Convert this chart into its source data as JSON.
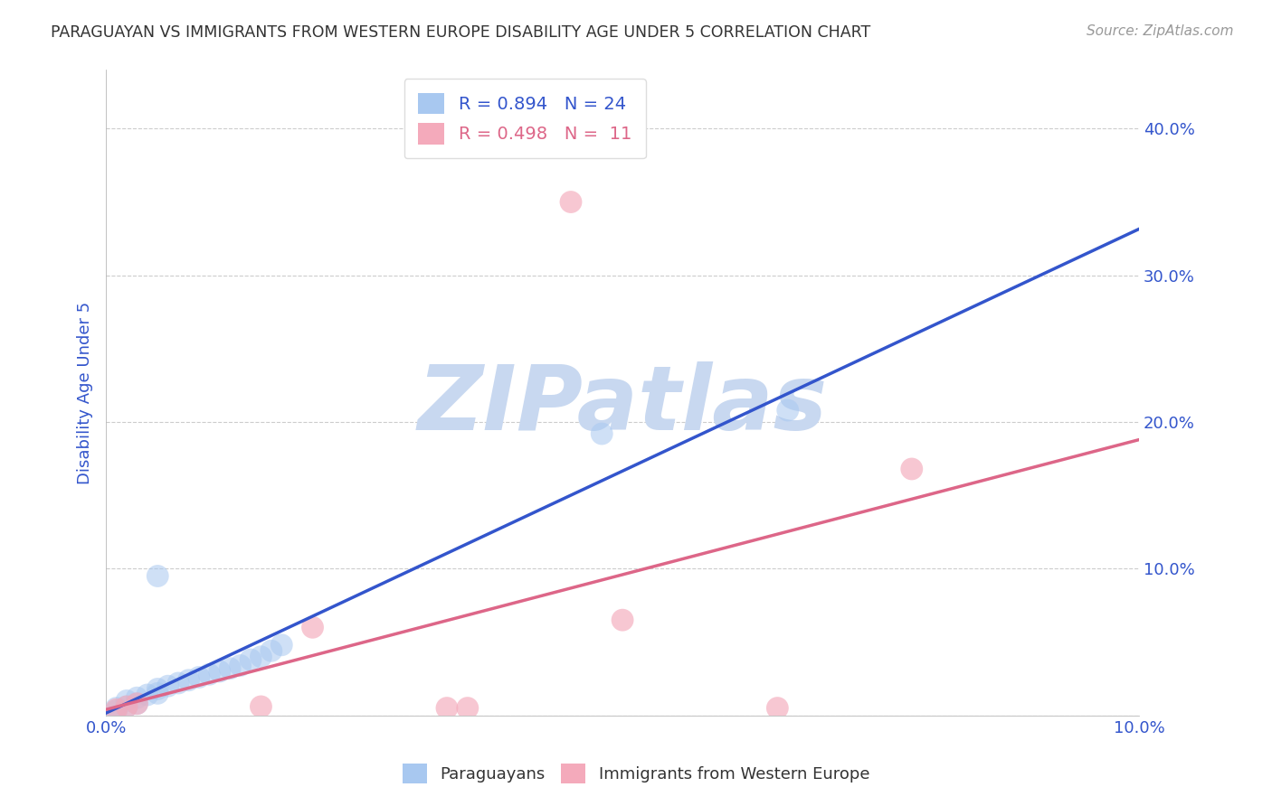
{
  "title": "PARAGUAYAN VS IMMIGRANTS FROM WESTERN EUROPE DISABILITY AGE UNDER 5 CORRELATION CHART",
  "source": "Source: ZipAtlas.com",
  "ylabel": "Disability Age Under 5",
  "xlim": [
    0,
    0.1
  ],
  "ylim": [
    0,
    0.44
  ],
  "blue_R": 0.894,
  "blue_N": 24,
  "pink_R": 0.498,
  "pink_N": 11,
  "blue_color": "#A8C8F0",
  "blue_line_color": "#3355CC",
  "pink_color": "#F4AABB",
  "pink_line_color": "#DD6688",
  "blue_points_x": [
    0.001,
    0.001,
    0.002,
    0.002,
    0.003,
    0.003,
    0.004,
    0.005,
    0.005,
    0.006,
    0.007,
    0.008,
    0.009,
    0.01,
    0.011,
    0.012,
    0.013,
    0.014,
    0.015,
    0.016,
    0.017,
    0.005,
    0.048,
    0.066
  ],
  "blue_points_y": [
    0.003,
    0.005,
    0.006,
    0.01,
    0.008,
    0.012,
    0.014,
    0.015,
    0.018,
    0.02,
    0.022,
    0.024,
    0.026,
    0.028,
    0.03,
    0.032,
    0.034,
    0.038,
    0.04,
    0.044,
    0.048,
    0.095,
    0.192,
    0.208
  ],
  "pink_points_x": [
    0.001,
    0.002,
    0.003,
    0.015,
    0.02,
    0.033,
    0.035,
    0.05,
    0.065,
    0.078,
    0.045
  ],
  "pink_points_y": [
    0.004,
    0.006,
    0.008,
    0.006,
    0.06,
    0.005,
    0.005,
    0.065,
    0.005,
    0.168,
    0.35
  ],
  "legend_label_blue": "Paraguayans",
  "legend_label_pink": "Immigrants from Western Europe",
  "watermark_text": "ZIPatlas",
  "watermark_color": "#C8D8F0",
  "grid_color": "#CCCCCC",
  "background_color": "#FFFFFF",
  "title_color": "#333333",
  "axis_label_color": "#3355CC",
  "tick_label_color": "#3355CC",
  "yticks": [
    0.0,
    0.1,
    0.2,
    0.3,
    0.4
  ],
  "ytick_labels": [
    "",
    "10.0%",
    "20.0%",
    "30.0%",
    "40.0%"
  ],
  "xtick_vals": [
    0.0,
    0.02,
    0.04,
    0.06,
    0.08,
    0.1
  ],
  "xtick_labels": [
    "0.0%",
    "",
    "",
    "",
    "",
    "10.0%"
  ]
}
